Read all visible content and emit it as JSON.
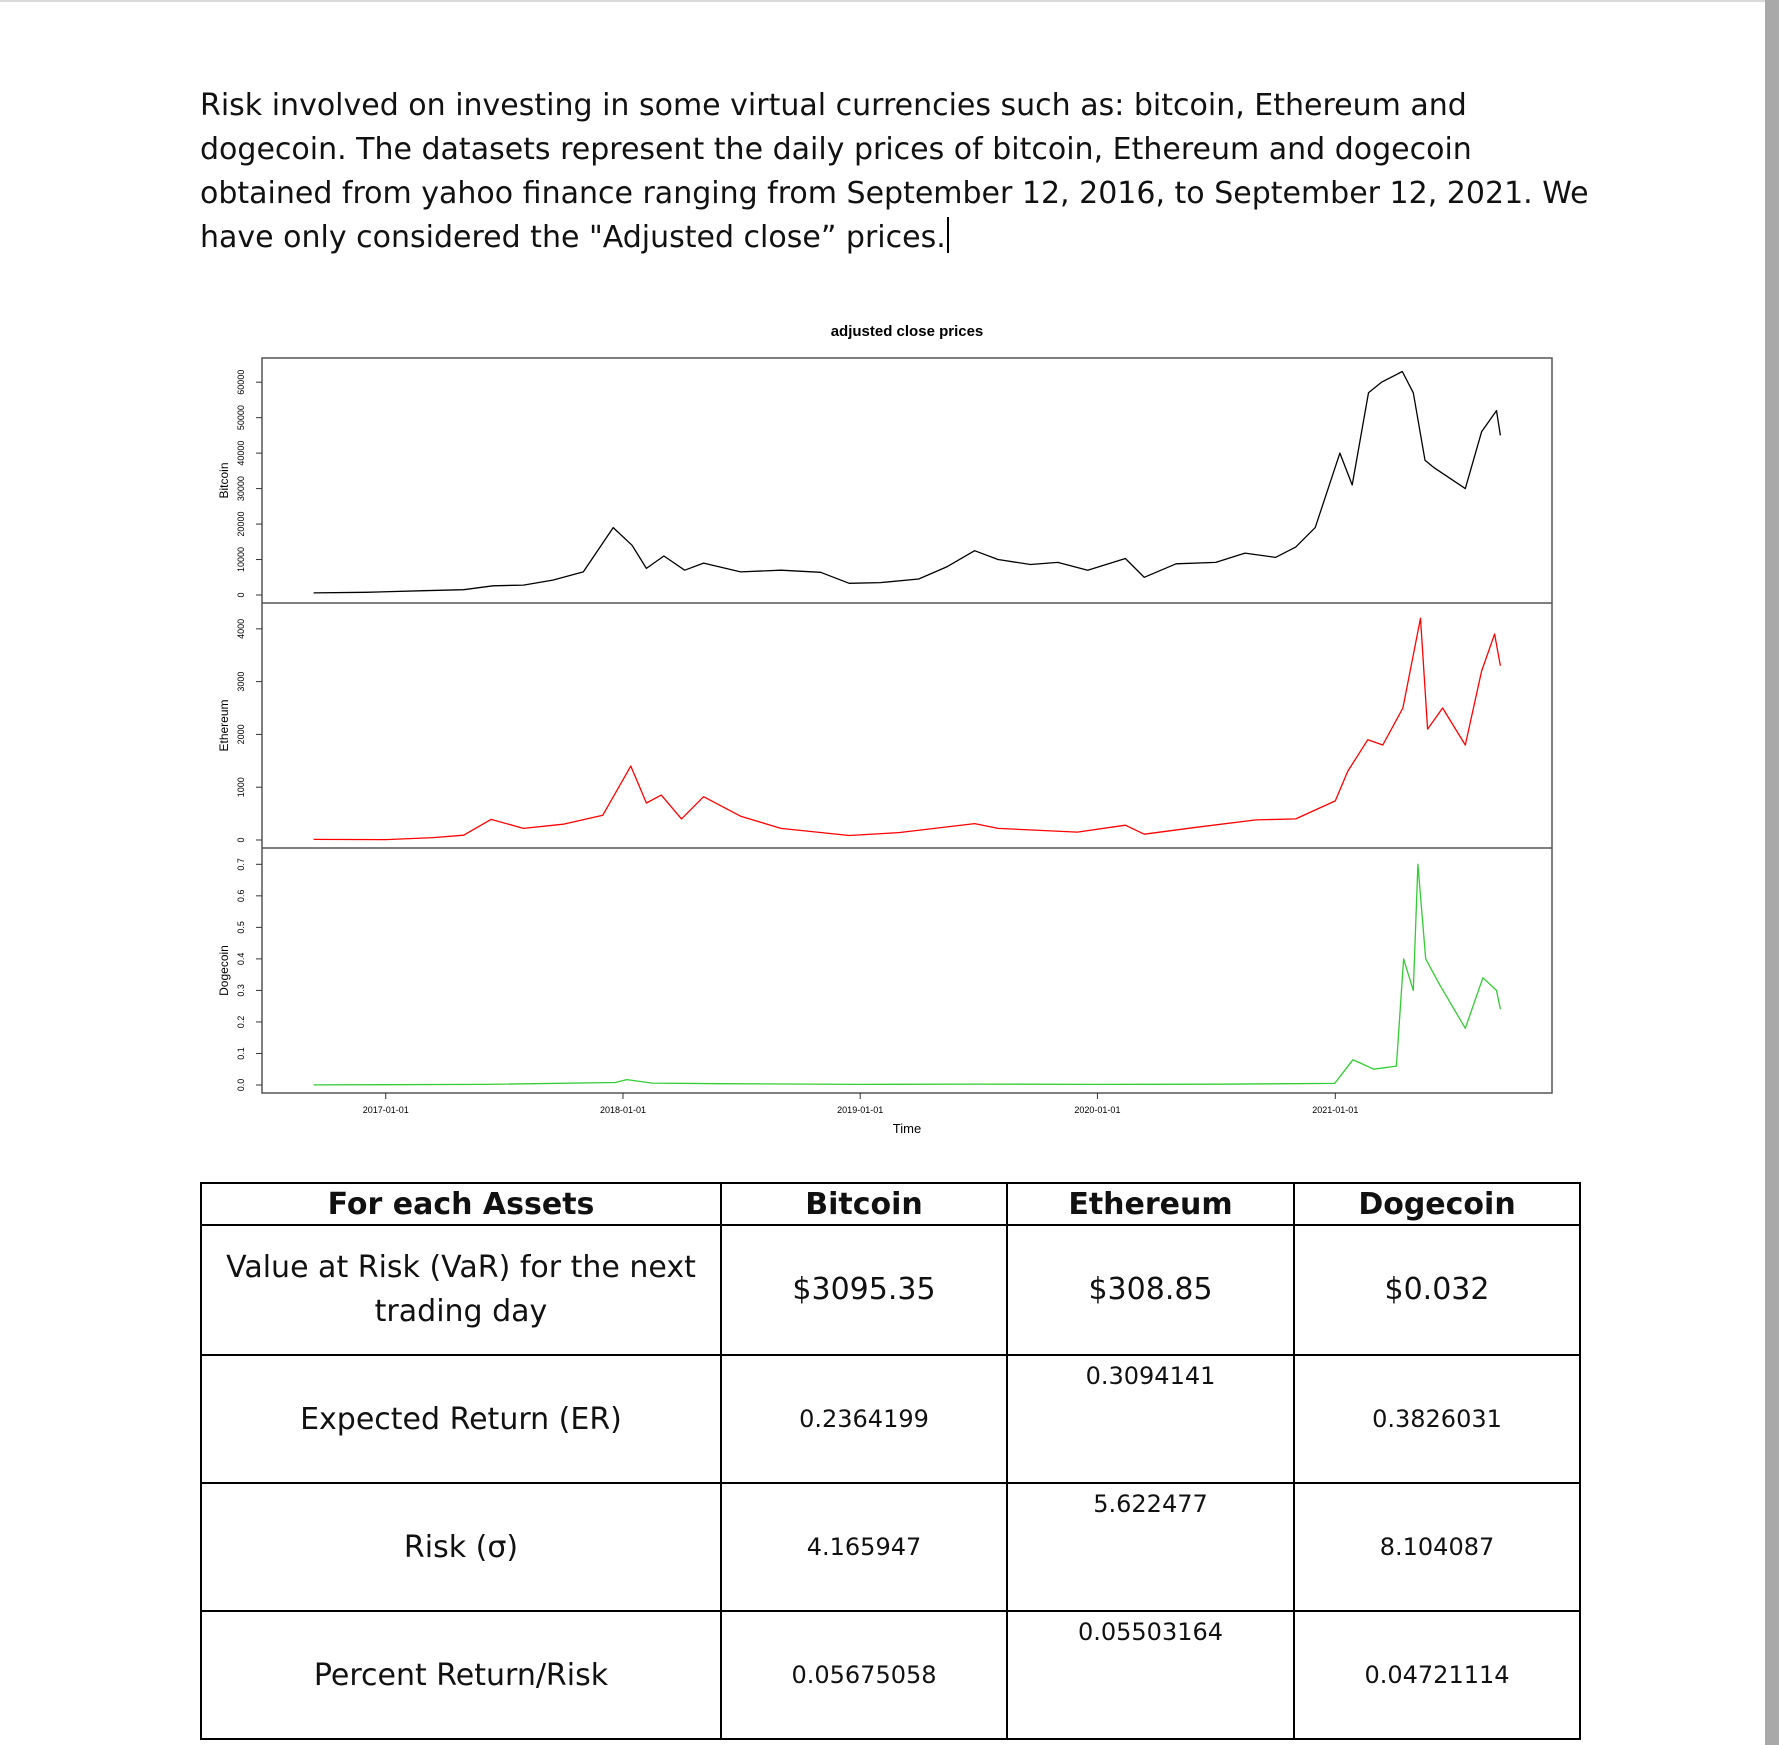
{
  "document": {
    "paragraph": "Risk involved on investing in some virtual currencies such as: bitcoin, Ethereum and dogecoin. The datasets represent the daily prices of bitcoin, Ethereum and dogecoin obtained from yahoo finance ranging from September 12, 2016, to September 12, 2021. We have only considered the \"Adjusted close” prices."
  },
  "chart_data": {
    "type": "line",
    "title": "adjusted close prices",
    "xlabel": "Time",
    "x_ticks": [
      "2017-01-01",
      "2018-01-01",
      "2019-01-01",
      "2020-01-01",
      "2021-01-01"
    ],
    "xlim": [
      "2016-09-12",
      "2021-09-12"
    ],
    "grid": false,
    "legend": "none",
    "panels": [
      {
        "name": "Bitcoin",
        "ylabel": "Bitcoin",
        "color": "#000000",
        "ylim": [
          0,
          64000
        ],
        "yticks": [
          "0",
          "10000",
          "20000",
          "30000",
          "40000",
          "50000",
          "60000"
        ],
        "x": [
          "2016-09-12",
          "2016-12-01",
          "2017-03-01",
          "2017-05-01",
          "2017-06-15",
          "2017-08-01",
          "2017-09-15",
          "2017-11-01",
          "2017-12-17",
          "2018-01-15",
          "2018-02-06",
          "2018-03-05",
          "2018-04-06",
          "2018-05-05",
          "2018-07-01",
          "2018-09-01",
          "2018-11-01",
          "2018-12-15",
          "2019-02-01",
          "2019-04-01",
          "2019-05-15",
          "2019-06-26",
          "2019-08-01",
          "2019-09-20",
          "2019-11-01",
          "2019-12-17",
          "2020-02-13",
          "2020-03-13",
          "2020-05-01",
          "2020-07-01",
          "2020-08-15",
          "2020-10-01",
          "2020-11-01",
          "2020-12-01",
          "2021-01-08",
          "2021-01-27",
          "2021-02-21",
          "2021-03-13",
          "2021-04-14",
          "2021-05-01",
          "2021-05-19",
          "2021-06-01",
          "2021-07-20",
          "2021-08-14",
          "2021-09-06",
          "2021-09-12"
        ],
        "values": [
          600,
          750,
          1200,
          1500,
          2600,
          2800,
          4200,
          6500,
          19000,
          14000,
          7500,
          11000,
          7000,
          9000,
          6500,
          7000,
          6400,
          3300,
          3500,
          4500,
          8000,
          12500,
          10000,
          8600,
          9200,
          7000,
          10300,
          5000,
          8800,
          9200,
          11800,
          10600,
          13500,
          19000,
          40000,
          31000,
          57000,
          60000,
          63000,
          57000,
          38000,
          36000,
          30000,
          46000,
          52000,
          45000
        ]
      },
      {
        "name": "Ethereum",
        "ylabel": "Ethereum",
        "color": "#ff0000",
        "ylim": [
          0,
          4300
        ],
        "yticks": [
          "0",
          "1000",
          "2000",
          "3000",
          "4000"
        ],
        "x": [
          "2016-09-12",
          "2017-01-01",
          "2017-03-15",
          "2017-05-01",
          "2017-06-12",
          "2017-08-01",
          "2017-10-01",
          "2017-12-01",
          "2018-01-13",
          "2018-02-06",
          "2018-03-01",
          "2018-04-01",
          "2018-05-05",
          "2018-07-01",
          "2018-09-01",
          "2018-12-15",
          "2019-03-01",
          "2019-06-26",
          "2019-08-01",
          "2019-12-01",
          "2020-02-13",
          "2020-03-13",
          "2020-06-01",
          "2020-09-01",
          "2020-11-01",
          "2021-01-01",
          "2021-01-20",
          "2021-02-20",
          "2021-03-15",
          "2021-04-15",
          "2021-05-12",
          "2021-05-23",
          "2021-06-15",
          "2021-07-20",
          "2021-08-14",
          "2021-09-03",
          "2021-09-12"
        ],
        "values": [
          12,
          8,
          45,
          90,
          390,
          220,
          300,
          470,
          1400,
          700,
          850,
          400,
          820,
          450,
          220,
          85,
          140,
          310,
          220,
          150,
          280,
          110,
          240,
          380,
          400,
          740,
          1300,
          1900,
          1800,
          2500,
          4200,
          2100,
          2500,
          1800,
          3200,
          3900,
          3300
        ]
      },
      {
        "name": "Dogecoin",
        "ylabel": "Dogecoin",
        "color": "#33cc33",
        "ylim": [
          0,
          0.72
        ],
        "yticks": [
          "0.0",
          "0.1",
          "0.2",
          "0.3",
          "0.4",
          "0.5",
          "0.6",
          "0.7"
        ],
        "x": [
          "2016-09-12",
          "2017-06-01",
          "2017-12-20",
          "2018-01-07",
          "2018-02-15",
          "2018-06-01",
          "2019-01-01",
          "2019-07-01",
          "2020-01-01",
          "2020-07-01",
          "2020-12-31",
          "2021-01-28",
          "2021-02-08",
          "2021-03-01",
          "2021-04-05",
          "2021-04-16",
          "2021-05-01",
          "2021-05-08",
          "2021-05-20",
          "2021-06-10",
          "2021-07-20",
          "2021-08-16",
          "2021-09-06",
          "2021-09-12"
        ],
        "values": [
          0.0002,
          0.002,
          0.008,
          0.017,
          0.006,
          0.004,
          0.002,
          0.003,
          0.002,
          0.0025,
          0.005,
          0.08,
          0.07,
          0.05,
          0.06,
          0.4,
          0.3,
          0.7,
          0.4,
          0.32,
          0.18,
          0.34,
          0.3,
          0.24
        ]
      }
    ]
  },
  "table": {
    "headers": [
      "For each Assets",
      "Bitcoin",
      "Ethereum",
      "Dogecoin"
    ],
    "rows": [
      {
        "label": "Value at Risk (VaR) for the next trading day",
        "bitcoin": "$3095.35",
        "ethereum": "$308.85",
        "dogecoin": "$0.032"
      },
      {
        "label": "Expected Return (ER)",
        "bitcoin": "0.2364199",
        "ethereum": "0.3094141",
        "dogecoin": "0.3826031"
      },
      {
        "label": "Risk (σ)",
        "bitcoin": "4.165947",
        "ethereum": "5.622477",
        "dogecoin": "8.104087"
      },
      {
        "label": "Percent Return/Risk",
        "bitcoin": "0.05675058",
        "ethereum": "0.05503164",
        "dogecoin": "0.04721114"
      }
    ]
  }
}
